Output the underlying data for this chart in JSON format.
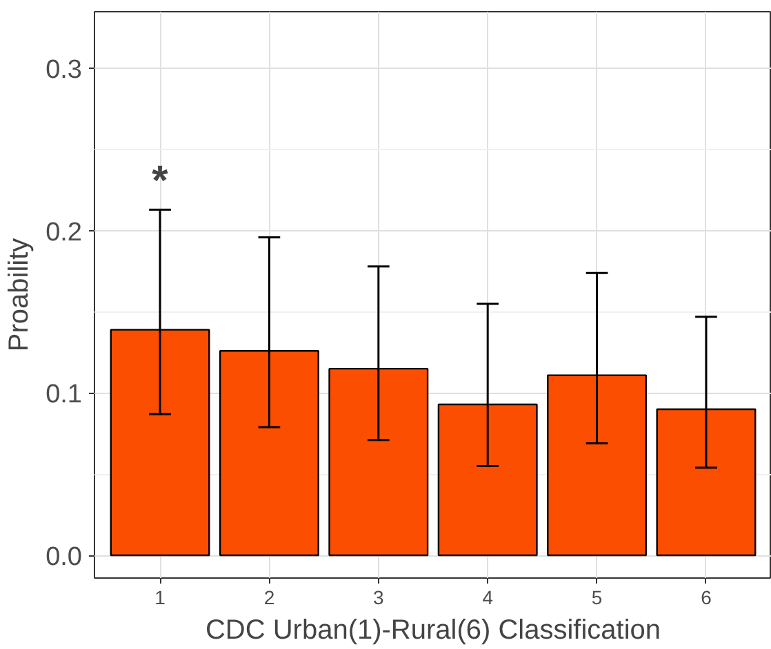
{
  "chart_data": {
    "type": "bar",
    "xlabel": "CDC Urban(1)-Rural(6) Classification",
    "ylabel": "Proability",
    "categories": [
      "1",
      "2",
      "3",
      "4",
      "5",
      "6"
    ],
    "values": [
      0.139,
      0.126,
      0.115,
      0.093,
      0.111,
      0.09
    ],
    "errors": [
      [
        0.087,
        0.213
      ],
      [
        0.079,
        0.196
      ],
      [
        0.071,
        0.178
      ],
      [
        0.055,
        0.155
      ],
      [
        0.069,
        0.174
      ],
      [
        0.054,
        0.147
      ]
    ],
    "color": "#fc4e00",
    "ylim": [
      -0.014,
      0.335
    ],
    "yticks": [
      {
        "value": 0,
        "label": "0.0"
      },
      0.1,
      0.2,
      0.3
    ],
    "grid": true,
    "annotations": [
      "*"
    ]
  }
}
